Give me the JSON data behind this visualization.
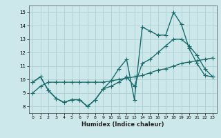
{
  "title": "",
  "xlabel": "Humidex (Indice chaleur)",
  "ylabel": "",
  "xlim": [
    -0.5,
    23.5
  ],
  "ylim": [
    7.5,
    15.5
  ],
  "yticks": [
    8,
    9,
    10,
    11,
    12,
    13,
    14,
    15
  ],
  "xticks": [
    0,
    1,
    2,
    3,
    4,
    5,
    6,
    7,
    8,
    9,
    10,
    11,
    12,
    13,
    14,
    15,
    16,
    17,
    18,
    19,
    20,
    21,
    22,
    23
  ],
  "bg_color": "#cde8eb",
  "grid_color": "#aecfd4",
  "line_color": "#1a6b6b",
  "line_width": 1.0,
  "marker": "+",
  "marker_size": 4,
  "lines": [
    [
      9.8,
      10.2,
      9.2,
      8.6,
      8.3,
      8.5,
      8.5,
      8.0,
      8.5,
      9.3,
      9.9,
      10.8,
      11.5,
      8.5,
      13.9,
      13.6,
      13.3,
      13.3,
      15.0,
      14.1,
      12.3,
      11.2,
      10.3,
      10.2
    ],
    [
      9.8,
      10.2,
      9.2,
      8.6,
      8.3,
      8.5,
      8.5,
      8.0,
      8.5,
      9.3,
      9.5,
      9.8,
      10.2,
      9.5,
      11.2,
      11.5,
      12.0,
      12.5,
      13.0,
      13.0,
      12.5,
      11.8,
      10.8,
      10.2
    ],
    [
      9.0,
      9.5,
      9.8,
      9.8,
      9.8,
      9.8,
      9.8,
      9.8,
      9.8,
      9.8,
      9.9,
      10.0,
      10.1,
      10.2,
      10.3,
      10.5,
      10.7,
      10.8,
      11.0,
      11.2,
      11.3,
      11.4,
      11.5,
      11.6
    ]
  ]
}
